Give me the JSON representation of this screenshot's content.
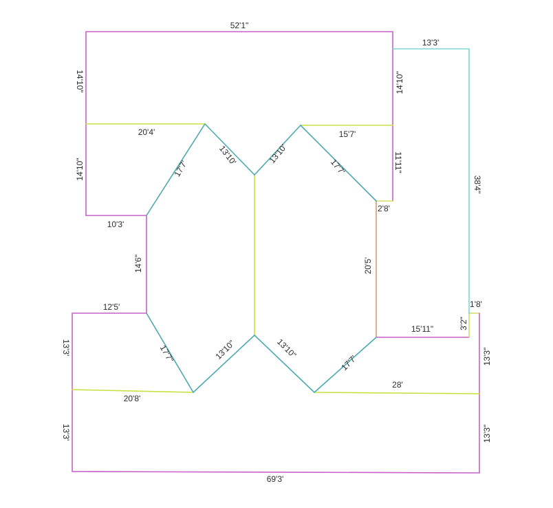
{
  "colors": {
    "magenta": "#c860c8",
    "teal": "#4aaab0",
    "cyan": "#7fd6d6",
    "lime": "#c8e040",
    "orange": "#e09a60",
    "olive": "#d8d860",
    "text": "#2b2b2b",
    "background": "#ffffff"
  },
  "labels": {
    "top": "52'1\"",
    "top_right_run": "13'3'",
    "left_upper": "14'10\"",
    "right_upper": "14'10\"",
    "right_outer": "38'4\"",
    "ridge_left_top": "20'4'",
    "ridge_right_top": "15'7'",
    "valley_ul_a": "13'10'",
    "valley_ul_b": "17'7'",
    "valley_ur_a": "13'10'",
    "valley_ur_b": "17'7'",
    "left_mid": "14'10\"",
    "right_mid": "11'11\"",
    "step_left": "10'3'",
    "step_right": "2'8'",
    "left_center": "14'6\"",
    "right_center": "20'5'",
    "step_12": "12'5'",
    "step_15": "15'11\"",
    "small_18": "1'8'",
    "small_32": "3'2\"",
    "left_low_upper": "13'3'",
    "right_low_upper": "13'3\"",
    "valley_ll_a": "17'7\"",
    "valley_ll_b": "13'10\"",
    "valley_lr_a": "13'10\"",
    "valley_lr_b": "17'7'",
    "ridge_left_bottom": "20'8'",
    "ridge_right_bottom": "28'",
    "left_low_lower": "13'3'",
    "right_low_lower": "13'3\"",
    "bottom": "69'3'"
  }
}
